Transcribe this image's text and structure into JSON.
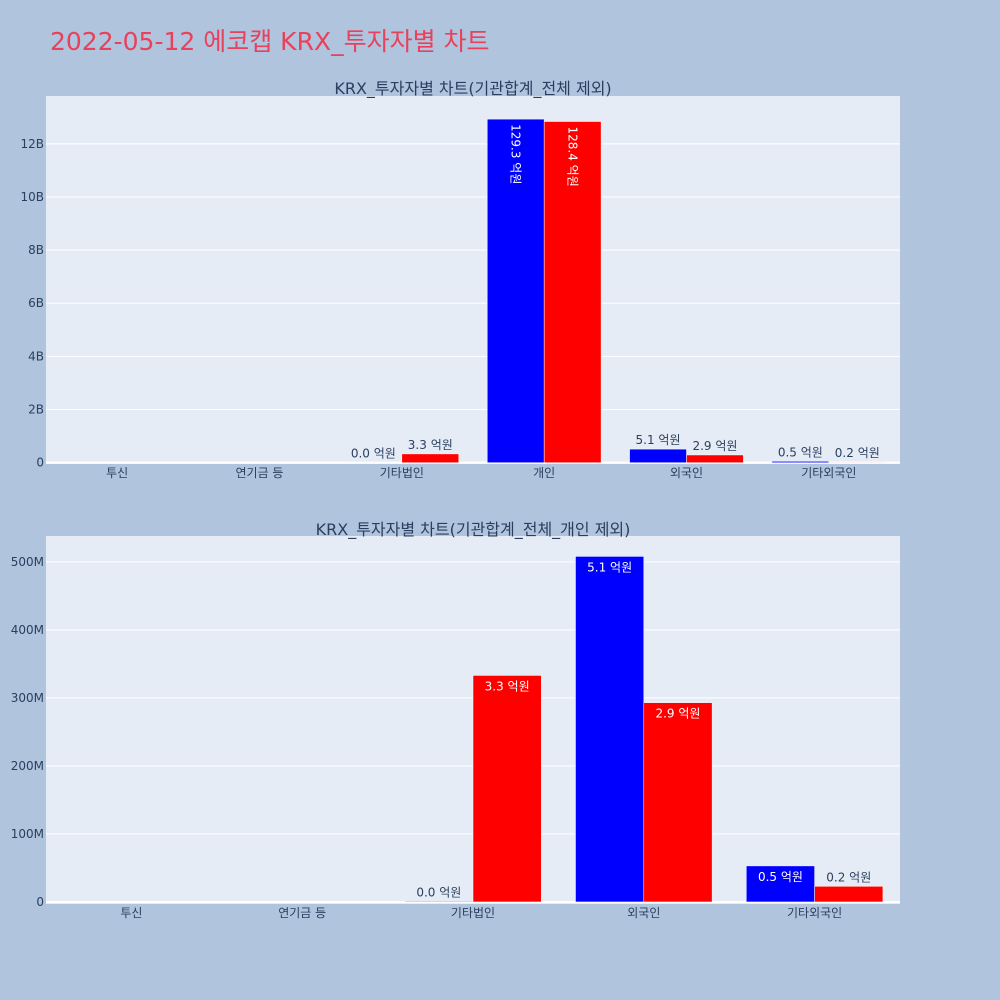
{
  "page": {
    "title": "2022-05-12 에코캡 KRX_투자자별 차트"
  },
  "colors": {
    "background": "#b0c4de",
    "plot_bg": "#e5ecf6",
    "grid": "#ffffff",
    "title": "#e8415b",
    "series_a": "#0000ff",
    "series_b": "#ff0000",
    "text": "#2a3f5f"
  },
  "chart_data": [
    {
      "type": "bar",
      "title": "KRX_투자자별 차트(기관합계_전체 제외)",
      "categories": [
        "투신",
        "연기금 등",
        "기타법인",
        "개인",
        "외국인",
        "기타외국인"
      ],
      "yticks": [
        "0",
        "2B",
        "4B",
        "6B",
        "8B",
        "10B",
        "12B"
      ],
      "ytick_values": [
        0,
        2000000000,
        4000000000,
        6000000000,
        8000000000,
        10000000000,
        12000000000
      ],
      "ylim": [
        -50000000,
        13800000000
      ],
      "series": [
        {
          "values": [
            0,
            0,
            1000000,
            12930000000,
            510000000,
            50000000
          ],
          "labels": [
            "",
            "",
            "0.0 억원",
            "129.3 억원",
            "5.1 억원",
            "0.5 억원"
          ]
        },
        {
          "values": [
            0,
            0,
            330000000,
            12840000000,
            290000000,
            20000000
          ],
          "labels": [
            "",
            "",
            "3.3 억원",
            "128.4 억원",
            "2.9 억원",
            "0.2 억원"
          ]
        }
      ]
    },
    {
      "type": "bar",
      "title": "KRX_투자자별 차트(기관합계_전체_개인 제외)",
      "categories": [
        "투신",
        "연기금 등",
        "기타법인",
        "외국인",
        "기타외국인"
      ],
      "yticks": [
        "0",
        "100M",
        "200M",
        "300M",
        "400M",
        "500M"
      ],
      "ytick_values": [
        0,
        100000000,
        200000000,
        300000000,
        400000000,
        500000000
      ],
      "ylim": [
        -3000000,
        538000000
      ],
      "series": [
        {
          "values": [
            0,
            0,
            1000000,
            508000000,
            53000000
          ],
          "labels": [
            "",
            "",
            "0.0 억원",
            "5.1 억원",
            "0.5 억원"
          ]
        },
        {
          "values": [
            0,
            0,
            333000000,
            293000000,
            23000000
          ],
          "labels": [
            "",
            "",
            "3.3 억원",
            "2.9 억원",
            "0.2 억원"
          ]
        }
      ]
    }
  ]
}
